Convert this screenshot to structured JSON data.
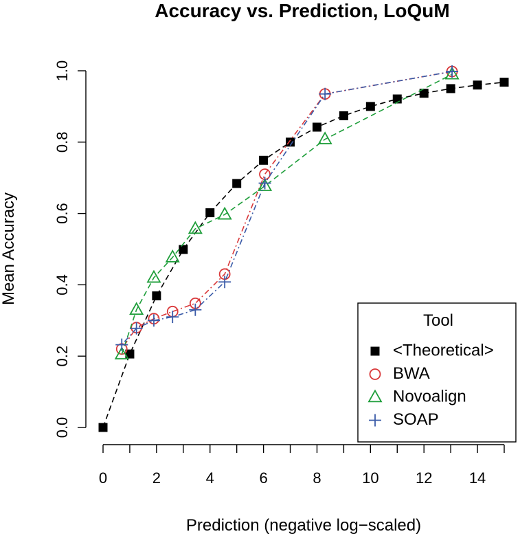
{
  "chart_data": {
    "type": "line",
    "title": "Accuracy vs. Prediction, LoQuM",
    "xlabel": "Prediction (negative log−scaled)",
    "ylabel": "Mean Accuracy",
    "xlim": [
      0,
      15
    ],
    "ylim": [
      0,
      1
    ],
    "x_ticks": [
      0,
      1,
      2,
      3,
      4,
      5,
      6,
      7,
      8,
      9,
      10,
      11,
      12,
      13,
      14,
      15
    ],
    "x_tick_labels": [
      {
        "value": 0,
        "label": "0"
      },
      {
        "value": 2,
        "label": "2"
      },
      {
        "value": 4,
        "label": "4"
      },
      {
        "value": 6,
        "label": "6"
      },
      {
        "value": 8,
        "label": "8"
      },
      {
        "value": 10,
        "label": "10"
      },
      {
        "value": 12,
        "label": "12"
      },
      {
        "value": 14,
        "label": "14"
      }
    ],
    "y_ticks": [
      {
        "value": 0.0,
        "label": "0.0"
      },
      {
        "value": 0.2,
        "label": "0.2"
      },
      {
        "value": 0.4,
        "label": "0.4"
      },
      {
        "value": 0.6,
        "label": "0.6"
      },
      {
        "value": 0.8,
        "label": "0.8"
      },
      {
        "value": 1.0,
        "label": "1.0"
      }
    ],
    "grid": false,
    "legend": {
      "title": "Tool",
      "position": "bottom-right"
    },
    "series": [
      {
        "name": "<Theoretical>",
        "marker": "square",
        "color": "#000000",
        "line_style": "dashed",
        "points": [
          {
            "x": 0,
            "y": 0.0
          },
          {
            "x": 1,
            "y": 0.206
          },
          {
            "x": 2,
            "y": 0.369
          },
          {
            "x": 3,
            "y": 0.499
          },
          {
            "x": 4,
            "y": 0.602
          },
          {
            "x": 5,
            "y": 0.684
          },
          {
            "x": 6,
            "y": 0.749
          },
          {
            "x": 7,
            "y": 0.8
          },
          {
            "x": 8,
            "y": 0.842
          },
          {
            "x": 9,
            "y": 0.874
          },
          {
            "x": 10,
            "y": 0.9
          },
          {
            "x": 11,
            "y": 0.921
          },
          {
            "x": 12,
            "y": 0.937
          },
          {
            "x": 13,
            "y": 0.95
          },
          {
            "x": 14,
            "y": 0.96
          },
          {
            "x": 15,
            "y": 0.968
          }
        ]
      },
      {
        "name": "BWA",
        "marker": "circle",
        "color": "#d9383a",
        "line_style": "dotdash",
        "points": [
          {
            "x": 0.7,
            "y": 0.22
          },
          {
            "x": 1.25,
            "y": 0.28
          },
          {
            "x": 1.9,
            "y": 0.305
          },
          {
            "x": 2.6,
            "y": 0.325
          },
          {
            "x": 3.45,
            "y": 0.348
          },
          {
            "x": 4.55,
            "y": 0.43
          },
          {
            "x": 6.05,
            "y": 0.71
          },
          {
            "x": 8.3,
            "y": 0.935
          },
          {
            "x": 13.05,
            "y": 0.998
          }
        ]
      },
      {
        "name": "Novoalign",
        "marker": "triangle",
        "color": "#1e9e3a",
        "line_style": "dashed",
        "points": [
          {
            "x": 0.7,
            "y": 0.205
          },
          {
            "x": 1.25,
            "y": 0.33
          },
          {
            "x": 1.9,
            "y": 0.42
          },
          {
            "x": 2.6,
            "y": 0.477
          },
          {
            "x": 3.45,
            "y": 0.557
          },
          {
            "x": 4.55,
            "y": 0.597
          },
          {
            "x": 6.05,
            "y": 0.677
          },
          {
            "x": 8.3,
            "y": 0.808
          },
          {
            "x": 13.05,
            "y": 0.99
          }
        ]
      },
      {
        "name": "SOAP",
        "marker": "plus",
        "color": "#3a5ba8",
        "line_style": "dotdash",
        "points": [
          {
            "x": 0.7,
            "y": 0.232
          },
          {
            "x": 1.25,
            "y": 0.278
          },
          {
            "x": 1.9,
            "y": 0.3
          },
          {
            "x": 2.6,
            "y": 0.31
          },
          {
            "x": 3.45,
            "y": 0.33
          },
          {
            "x": 4.55,
            "y": 0.408
          },
          {
            "x": 6.05,
            "y": 0.685
          },
          {
            "x": 8.3,
            "y": 0.935
          },
          {
            "x": 13.05,
            "y": 0.998
          }
        ]
      }
    ]
  }
}
